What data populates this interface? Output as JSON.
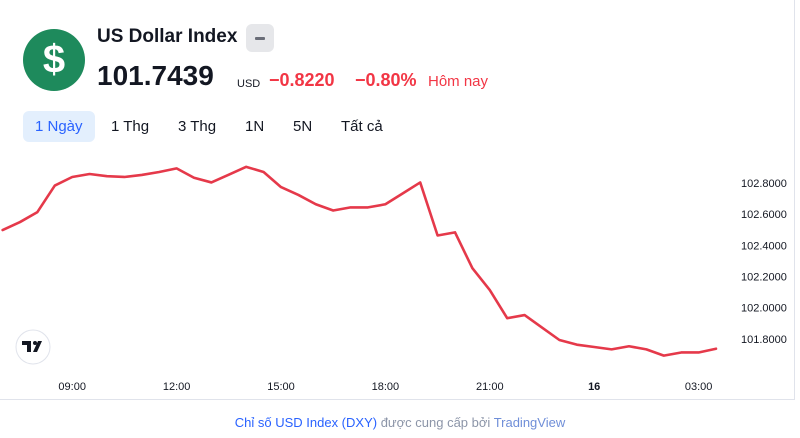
{
  "header": {
    "icon": "$",
    "title": "US Dollar Index",
    "price": "101.7439",
    "currency": "USD",
    "change": "−0.8220",
    "change_percent": "−0.80%",
    "period": "Hôm nay"
  },
  "tabs": [
    "1 Ngày",
    "1 Thg",
    "3 Thg",
    "1N",
    "5N",
    "Tất cả"
  ],
  "footer": {
    "link": "Chỉ số USD Index (DXY)",
    "text": "được cung cấp bởi",
    "provider": "TradingView"
  },
  "chart_data": {
    "type": "line",
    "categories": [
      null,
      null,
      null,
      null,
      "09:00",
      null,
      null,
      null,
      null,
      null,
      "12:00",
      null,
      null,
      null,
      null,
      null,
      "15:00",
      null,
      null,
      null,
      null,
      null,
      "18:00",
      null,
      null,
      null,
      null,
      null,
      "21:00",
      null,
      null,
      null,
      null,
      null,
      "16",
      null,
      null,
      null,
      null,
      null,
      "03:00",
      null
    ],
    "series": [
      {
        "color": "#e5394a",
        "values": [
          102.505,
          102.556,
          102.62,
          102.79,
          102.845,
          102.864,
          102.85,
          102.845,
          102.858,
          102.877,
          102.9,
          102.84,
          102.81,
          102.86,
          102.91,
          102.877,
          102.78,
          102.73,
          102.67,
          102.63,
          102.65,
          102.65,
          102.67,
          102.74,
          102.81,
          102.47,
          102.49,
          102.26,
          102.12,
          101.94,
          101.96,
          101.88,
          101.8,
          101.77,
          101.755,
          101.74,
          101.76,
          101.74,
          101.7,
          101.72,
          101.72,
          101.7439
        ]
      }
    ],
    "ylim": [
      101.6,
      103.0
    ],
    "yticks": [
      {
        "value": 101.8,
        "label": "101.8000"
      },
      {
        "value": 102.0,
        "label": "102.0000"
      },
      {
        "value": 102.2,
        "label": "102.2000"
      },
      {
        "value": 102.4,
        "label": "102.4000"
      },
      {
        "value": 102.6,
        "label": "102.6000"
      },
      {
        "value": 102.8,
        "label": "102.8000"
      }
    ],
    "grid": false
  }
}
